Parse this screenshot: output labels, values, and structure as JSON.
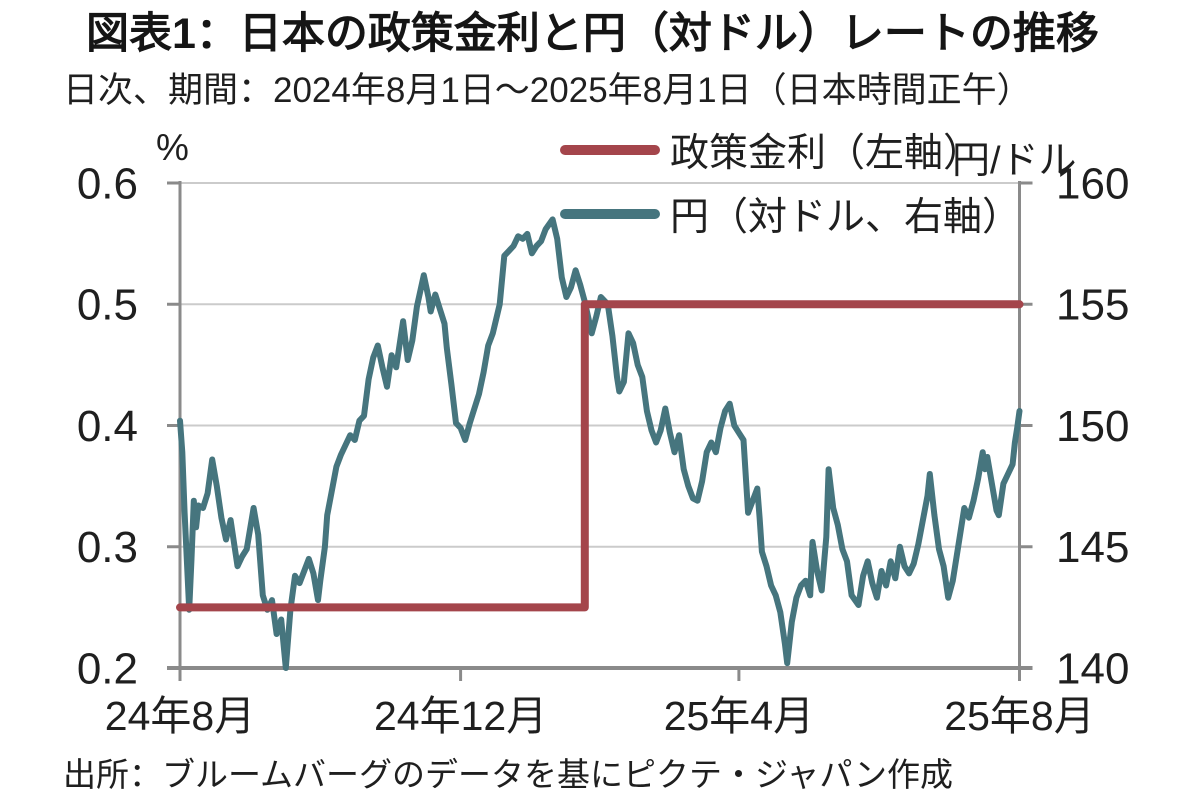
{
  "header": {
    "title": "図表1：日本の政策金利と円（対ドル）レートの推移",
    "subtitle": "日次、期間：2024年8月1日～2025年8月1日（日本時間正午）"
  },
  "footer": {
    "source": "出所：ブルームバーグのデータを基にピクテ・ジャパン作成"
  },
  "axes": {
    "left_unit": "%",
    "right_unit": "円/ドル"
  },
  "colors": {
    "policy_rate_line": "#a4454b",
    "yen_line": "#46757e",
    "axis": "#8a8a8a",
    "gridline": "#cbcbcb",
    "text": "#1f1f1f"
  },
  "chart_data": {
    "type": "line",
    "title": "図表1：日本の政策金利と円（対ドル）レートの推移",
    "subtitle": "日次、期間：2024年8月1日～2025年8月1日（日本時間正午）",
    "grid": true,
    "legend_position": "top-right",
    "x_axis": {
      "unit": "days_from_2024-08-01",
      "min": 0,
      "max": 365,
      "ticks": [
        {
          "pos": 0,
          "label": "24年8月"
        },
        {
          "pos": 122,
          "label": "24年12月"
        },
        {
          "pos": 243,
          "label": "25年4月"
        },
        {
          "pos": 365,
          "label": "25年8月"
        }
      ]
    },
    "left_axis": {
      "unit": "%",
      "min": 0.2,
      "max": 0.6,
      "ticks": [
        "0.6",
        "0.5",
        "0.4",
        "0.3",
        "0.2"
      ]
    },
    "right_axis": {
      "unit": "円/ドル",
      "min": 140,
      "max": 160,
      "ticks": [
        "160",
        "155",
        "150",
        "145",
        "140"
      ]
    },
    "series": [
      {
        "name": "政策金利（左軸）",
        "axis": "left",
        "unit": "%",
        "color": "#a4454b",
        "stroke_width": 8,
        "type": "step",
        "points": [
          [
            0,
            0.25
          ],
          [
            176,
            0.25
          ],
          [
            176,
            0.5
          ],
          [
            365,
            0.5
          ]
        ]
      },
      {
        "name": "円（対ドル、右軸）",
        "axis": "right",
        "unit": "円/ドル",
        "color": "#46757e",
        "stroke_width": 6,
        "type": "line",
        "points": [
          [
            0,
            150.2
          ],
          [
            1,
            148.9
          ],
          [
            2,
            146.4
          ],
          [
            4,
            142.4
          ],
          [
            5,
            144.5
          ],
          [
            6,
            146.9
          ],
          [
            7,
            145.8
          ],
          [
            8,
            146.7
          ],
          [
            10,
            146.6
          ],
          [
            12,
            147.2
          ],
          [
            14,
            148.6
          ],
          [
            16,
            147.5
          ],
          [
            18,
            146.2
          ],
          [
            20,
            145.3
          ],
          [
            22,
            146.1
          ],
          [
            25,
            144.2
          ],
          [
            27,
            144.6
          ],
          [
            29,
            144.9
          ],
          [
            32,
            146.6
          ],
          [
            34,
            145.5
          ],
          [
            36,
            143.0
          ],
          [
            38,
            142.4
          ],
          [
            40,
            142.8
          ],
          [
            42,
            141.4
          ],
          [
            44,
            142.0
          ],
          [
            46,
            140.0
          ],
          [
            48,
            142.4
          ],
          [
            50,
            143.8
          ],
          [
            52,
            143.5
          ],
          [
            54,
            144.0
          ],
          [
            56,
            144.5
          ],
          [
            58,
            143.9
          ],
          [
            60,
            142.8
          ],
          [
            61,
            143.6
          ],
          [
            63,
            145.0
          ],
          [
            64,
            146.3
          ],
          [
            66,
            147.3
          ],
          [
            68,
            148.3
          ],
          [
            70,
            148.8
          ],
          [
            72,
            149.2
          ],
          [
            74,
            149.6
          ],
          [
            76,
            149.4
          ],
          [
            78,
            150.2
          ],
          [
            80,
            150.4
          ],
          [
            82,
            151.9
          ],
          [
            84,
            152.8
          ],
          [
            86,
            153.3
          ],
          [
            88,
            152.4
          ],
          [
            90,
            151.6
          ],
          [
            92,
            152.9
          ],
          [
            94,
            152.4
          ],
          [
            97,
            154.3
          ],
          [
            99,
            152.7
          ],
          [
            101,
            153.5
          ],
          [
            103,
            154.9
          ],
          [
            106,
            156.2
          ],
          [
            108,
            155.3
          ],
          [
            109,
            154.7
          ],
          [
            111,
            155.4
          ],
          [
            113,
            154.8
          ],
          [
            115,
            154.2
          ],
          [
            116,
            153.2
          ],
          [
            118,
            151.7
          ],
          [
            120,
            150.1
          ],
          [
            122,
            149.9
          ],
          [
            124,
            149.4
          ],
          [
            126,
            150.1
          ],
          [
            128,
            150.7
          ],
          [
            130,
            151.3
          ],
          [
            132,
            152.2
          ],
          [
            134,
            153.3
          ],
          [
            136,
            153.8
          ],
          [
            138,
            154.6
          ],
          [
            139,
            155.0
          ],
          [
            141,
            157.0
          ],
          [
            143,
            157.2
          ],
          [
            145,
            157.4
          ],
          [
            147,
            157.8
          ],
          [
            149,
            157.7
          ],
          [
            151,
            157.9
          ],
          [
            153,
            157.1
          ],
          [
            155,
            157.4
          ],
          [
            157,
            157.6
          ],
          [
            159,
            158.1
          ],
          [
            162,
            158.5
          ],
          [
            164,
            157.7
          ],
          [
            166,
            156.1
          ],
          [
            168,
            155.3
          ],
          [
            170,
            155.7
          ],
          [
            172,
            156.4
          ],
          [
            174,
            155.8
          ],
          [
            176,
            155.1
          ],
          [
            179,
            153.8
          ],
          [
            181,
            154.5
          ],
          [
            183,
            155.3
          ],
          [
            186,
            155.0
          ],
          [
            188,
            153.7
          ],
          [
            190,
            152.0
          ],
          [
            191,
            151.4
          ],
          [
            193,
            151.8
          ],
          [
            195,
            153.8
          ],
          [
            197,
            153.4
          ],
          [
            199,
            152.5
          ],
          [
            201,
            152.0
          ],
          [
            203,
            150.6
          ],
          [
            205,
            149.8
          ],
          [
            207,
            149.3
          ],
          [
            209,
            149.8
          ],
          [
            211,
            150.7
          ],
          [
            213,
            149.7
          ],
          [
            215,
            148.9
          ],
          [
            217,
            149.6
          ],
          [
            219,
            148.2
          ],
          [
            221,
            147.5
          ],
          [
            223,
            147.0
          ],
          [
            225,
            146.9
          ],
          [
            227,
            147.7
          ],
          [
            229,
            148.9
          ],
          [
            231,
            149.3
          ],
          [
            233,
            148.9
          ],
          [
            235,
            149.9
          ],
          [
            237,
            150.6
          ],
          [
            239,
            150.9
          ],
          [
            241,
            150.0
          ],
          [
            243,
            149.7
          ],
          [
            245,
            149.4
          ],
          [
            247,
            146.4
          ],
          [
            249,
            146.9
          ],
          [
            251,
            147.4
          ],
          [
            252,
            146.2
          ],
          [
            253,
            144.8
          ],
          [
            255,
            144.2
          ],
          [
            257,
            143.4
          ],
          [
            259,
            143.0
          ],
          [
            261,
            142.3
          ],
          [
            263,
            141.0
          ],
          [
            264,
            140.2
          ],
          [
            266,
            141.9
          ],
          [
            268,
            142.9
          ],
          [
            270,
            143.4
          ],
          [
            272,
            143.6
          ],
          [
            274,
            143.0
          ],
          [
            275,
            145.2
          ],
          [
            277,
            144.0
          ],
          [
            279,
            143.2
          ],
          [
            281,
            145.4
          ],
          [
            282,
            148.2
          ],
          [
            284,
            146.6
          ],
          [
            286,
            145.9
          ],
          [
            288,
            144.9
          ],
          [
            290,
            144.4
          ],
          [
            292,
            143.0
          ],
          [
            295,
            142.6
          ],
          [
            297,
            143.8
          ],
          [
            299,
            144.4
          ],
          [
            301,
            143.5
          ],
          [
            303,
            142.9
          ],
          [
            305,
            144.0
          ],
          [
            307,
            143.4
          ],
          [
            309,
            144.4
          ],
          [
            311,
            143.7
          ],
          [
            313,
            145.0
          ],
          [
            315,
            144.2
          ],
          [
            317,
            143.9
          ],
          [
            319,
            144.3
          ],
          [
            321,
            145.1
          ],
          [
            323,
            146.1
          ],
          [
            325,
            147.1
          ],
          [
            326,
            148.0
          ],
          [
            328,
            146.3
          ],
          [
            330,
            144.9
          ],
          [
            332,
            144.2
          ],
          [
            334,
            142.9
          ],
          [
            336,
            143.6
          ],
          [
            338,
            144.8
          ],
          [
            340,
            146.0
          ],
          [
            341,
            146.6
          ],
          [
            343,
            146.2
          ],
          [
            345,
            146.9
          ],
          [
            347,
            147.8
          ],
          [
            349,
            148.9
          ],
          [
            350,
            148.2
          ],
          [
            351,
            148.7
          ],
          [
            353,
            147.6
          ],
          [
            355,
            146.5
          ],
          [
            356,
            146.3
          ],
          [
            358,
            147.6
          ],
          [
            360,
            148.0
          ],
          [
            362,
            148.4
          ],
          [
            363,
            149.3
          ],
          [
            364,
            149.9
          ],
          [
            365,
            150.6
          ]
        ]
      }
    ]
  }
}
